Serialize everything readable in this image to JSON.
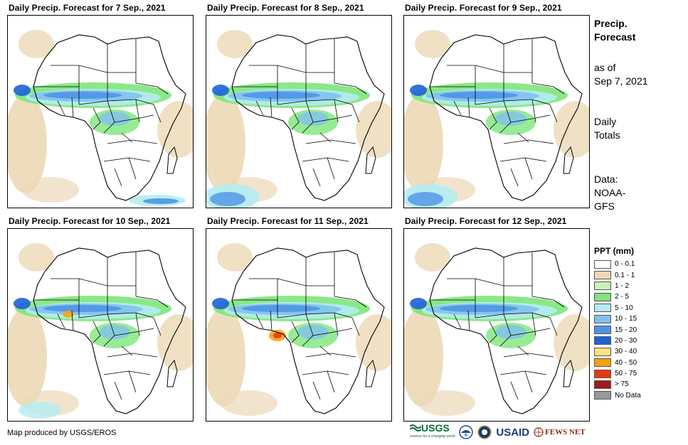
{
  "panels": [
    {
      "title": "Daily Precip. Forecast for 7 Sep., 2021"
    },
    {
      "title": "Daily Precip. Forecast for 8 Sep., 2021"
    },
    {
      "title": "Daily Precip. Forecast for 9 Sep., 2021"
    },
    {
      "title": "Daily Precip. Forecast for 10 Sep., 2021"
    },
    {
      "title": "Daily Precip. Forecast for 11 Sep., 2021"
    },
    {
      "title": "Daily Precip. Forecast for 12 Sep., 2021"
    }
  ],
  "side": {
    "title_line1": "Precip.",
    "title_line2": "Forecast",
    "asof_line1": "as of",
    "asof_line2": "Sep 7, 2021",
    "totals_line1": "Daily",
    "totals_line2": "Totals",
    "data_line1": "Data:",
    "data_line2": "NOAA-",
    "data_line3": "GFS"
  },
  "legend": {
    "title": "PPT (mm)",
    "items": [
      {
        "label": "0 - 0.1",
        "color": "#ffffff"
      },
      {
        "label": "0.1 - 1",
        "color": "#ecd9b6"
      },
      {
        "label": "1 - 2",
        "color": "#c8f5b5"
      },
      {
        "label": "2 - 5",
        "color": "#7de67a"
      },
      {
        "label": "5 - 10",
        "color": "#b4ecf2"
      },
      {
        "label": "10 - 15",
        "color": "#82c1ee"
      },
      {
        "label": "15 - 20",
        "color": "#4e94e6"
      },
      {
        "label": "20 - 30",
        "color": "#1e62d8"
      },
      {
        "label": "30 - 40",
        "color": "#fbe27c"
      },
      {
        "label": "40 - 50",
        "color": "#f5a20f"
      },
      {
        "label": "50 - 75",
        "color": "#e83810"
      },
      {
        "label": "> 75",
        "color": "#a01a1a"
      },
      {
        "label": "No Data",
        "color": "#999999"
      }
    ]
  },
  "credit": "Map produced by USGS/EROS",
  "logos": {
    "usgs": "USGS",
    "usgs_tagline": "science for a changing world",
    "noaa": "NOAA",
    "usaid": "USAID",
    "fewsnet": "FEWS NET"
  }
}
